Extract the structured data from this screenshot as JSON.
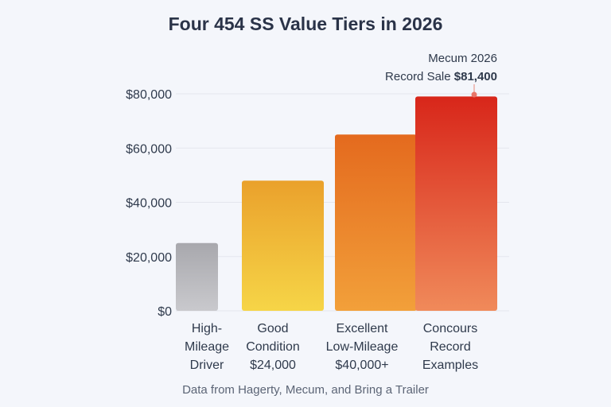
{
  "chart_data": {
    "type": "bar",
    "title": "Four 454 SS Value Tiers in 2026",
    "categories": [
      [
        "High-",
        "Mileage",
        "Driver"
      ],
      [
        "Good",
        "Condition",
        "$24,000"
      ],
      [
        "Excellent",
        "Low-Mileage",
        "$40,000+"
      ],
      [
        "Concours",
        "Record",
        "Examples"
      ]
    ],
    "values": [
      25000,
      48000,
      65000,
      79000
    ],
    "bar_colors": [
      [
        "#a8a8ad",
        "#c9c9cd"
      ],
      [
        "#eaa12c",
        "#f6d547"
      ],
      [
        "#e46a1e",
        "#f2a03a"
      ],
      [
        "#d8261a",
        "#f08a5a"
      ]
    ],
    "y_ticks": [
      "$80,000",
      "$60,000",
      "$40,000",
      "$20,000",
      "$0"
    ],
    "y_tick_values": [
      80000,
      60000,
      40000,
      20000,
      0
    ],
    "ylim": [
      0,
      80000
    ],
    "grid": true,
    "annotation": {
      "line1": "Mecum 2026",
      "line2_prefix": "Record Sale ",
      "line2_value": "$81,400",
      "target_category": "Concours Record Examples"
    },
    "source": "Data from Hagerty, Mecum, and Bring a Trailer"
  }
}
